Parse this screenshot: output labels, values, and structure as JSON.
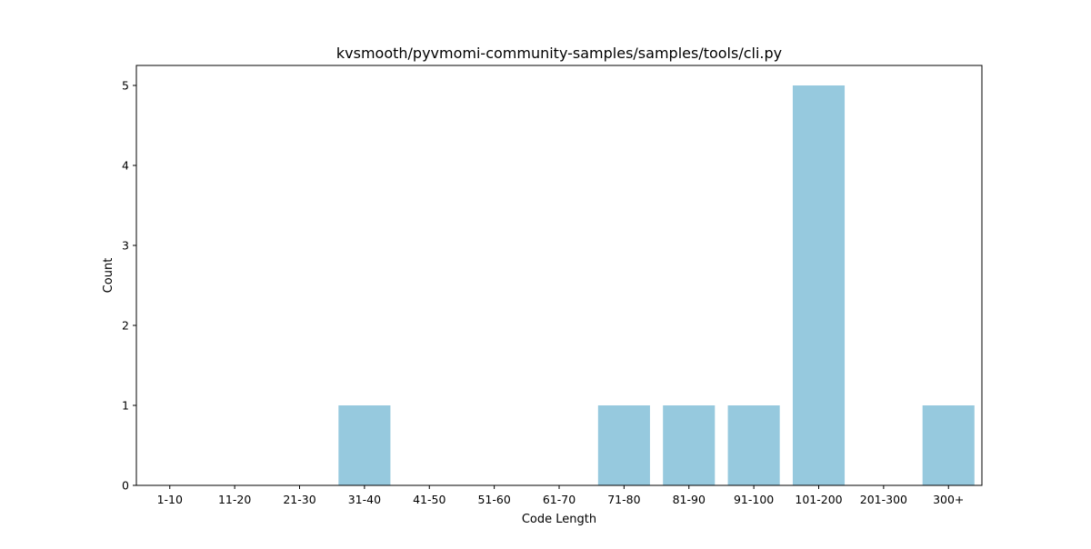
{
  "chart_data": {
    "type": "bar",
    "title": "kvsmooth/pyvmomi-community-samples/samples/tools/cli.py",
    "xlabel": "Code Length",
    "ylabel": "Count",
    "categories": [
      "1-10",
      "11-20",
      "21-30",
      "31-40",
      "41-50",
      "51-60",
      "61-70",
      "71-80",
      "81-90",
      "91-100",
      "101-200",
      "201-300",
      "300+"
    ],
    "values": [
      0,
      0,
      0,
      1,
      0,
      0,
      0,
      1,
      1,
      1,
      5,
      0,
      1
    ],
    "ylim": [
      0,
      5.25
    ],
    "yticks": [
      0,
      1,
      2,
      3,
      4,
      5
    ],
    "bar_color": "#96c9de",
    "grid": false,
    "legend": false
  }
}
